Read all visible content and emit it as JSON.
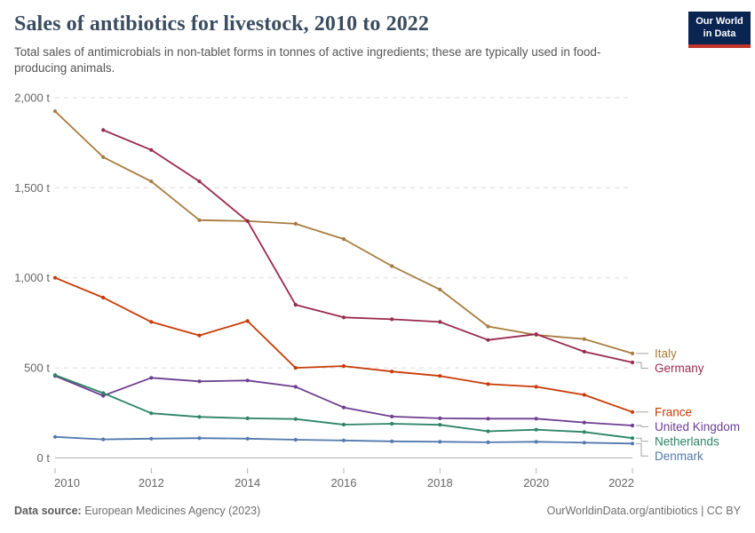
{
  "header": {
    "title": "Sales of antibiotics for livestock, 2010 to 2022",
    "subtitle": "Total sales of antimicrobials in non-tablet forms in tonnes of active ingredients; these are typically used in food-producing animals.",
    "logo": {
      "line1": "Our World",
      "line2": "in Data",
      "bg_color": "#0a2552",
      "bar_color": "#c0352b"
    }
  },
  "footer": {
    "source_label": "Data source:",
    "source_text": "European Medicines Agency (2023)",
    "right_text": "OurWorldinData.org/antibiotics | CC BY"
  },
  "chart_data": {
    "type": "line",
    "title": "Sales of antibiotics for livestock, 2010 to 2022",
    "xlabel": "",
    "ylabel": "",
    "unit": "t",
    "x": [
      2010,
      2011,
      2012,
      2013,
      2014,
      2015,
      2016,
      2017,
      2018,
      2019,
      2020,
      2021,
      2022
    ],
    "x_tick_labels": [
      "2010",
      "2012",
      "2014",
      "2016",
      "2018",
      "2020",
      "2022"
    ],
    "y_ticks": [
      {
        "value": 0,
        "label": "0 t"
      },
      {
        "value": 500,
        "label": "500 t"
      },
      {
        "value": 1000,
        "label": "1,000 t"
      },
      {
        "value": 1500,
        "label": "1,500 t"
      },
      {
        "value": 2000,
        "label": "2,000 t"
      }
    ],
    "ylim": [
      0,
      2000
    ],
    "grid": "dashed-horizontal",
    "legend_position": "end-of-line-labels-right",
    "series": [
      {
        "name": "Italy",
        "color": "#A77B3E",
        "values": [
          1925,
          1670,
          1535,
          1320,
          1315,
          1300,
          1215,
          1065,
          935,
          730,
          683,
          660,
          580
        ]
      },
      {
        "name": "Germany",
        "color": "#992A4C",
        "values": [
          null,
          1820,
          1710,
          1535,
          1315,
          850,
          780,
          770,
          755,
          655,
          687,
          590,
          530
        ]
      },
      {
        "name": "France",
        "color": "#C83B06",
        "values": [
          1000,
          890,
          755,
          680,
          760,
          500,
          510,
          480,
          455,
          410,
          395,
          350,
          255
        ]
      },
      {
        "name": "United Kingdom",
        "color": "#6D3E91",
        "values": [
          455,
          345,
          445,
          425,
          430,
          395,
          280,
          230,
          220,
          218,
          218,
          197,
          180
        ]
      },
      {
        "name": "Netherlands",
        "color": "#2C8465",
        "values": [
          460,
          360,
          248,
          228,
          220,
          216,
          185,
          190,
          184,
          148,
          157,
          144,
          110
        ]
      },
      {
        "name": "Denmark",
        "color": "#5379AE",
        "values": [
          117,
          103,
          107,
          110,
          107,
          101,
          97,
          92,
          90,
          87,
          90,
          85,
          80
        ]
      }
    ]
  },
  "style_colors": {
    "grid_line": "#dcdcdc",
    "zero_line": "#b3b3b3",
    "axis_text": "#666666",
    "connector": "#999999"
  }
}
